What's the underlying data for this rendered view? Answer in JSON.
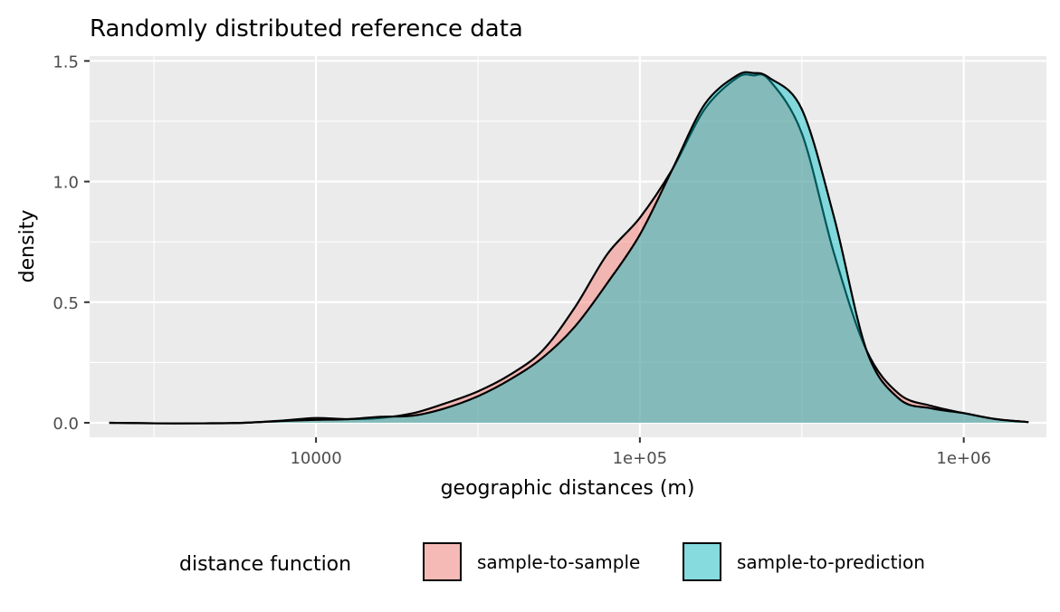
{
  "chart_data": {
    "type": "area",
    "title": "Randomly distributed reference data",
    "xlabel": "geographic distances (m)",
    "ylabel": "density",
    "x_scale": "log10",
    "xlim": [
      2000,
      1800000
    ],
    "ylim": [
      -0.06,
      1.52
    ],
    "x_ticks": [
      {
        "value": 10000,
        "label": "10000"
      },
      {
        "value": 100000,
        "label": "1e+05"
      },
      {
        "value": 1000000,
        "label": "1e+06"
      }
    ],
    "y_ticks": [
      {
        "value": 0.0,
        "label": "0.0"
      },
      {
        "value": 0.5,
        "label": "0.5"
      },
      {
        "value": 1.0,
        "label": "1.0"
      },
      {
        "value": 1.5,
        "label": "1.5"
      }
    ],
    "grid": true,
    "legend_position": "bottom",
    "legend_title": "distance function",
    "series": [
      {
        "name": "sample-to-sample",
        "color": "#F8766D",
        "fill_opacity": 0.45,
        "points": [
          [
            2300,
            0.0
          ],
          [
            3200,
            -0.002
          ],
          [
            4500,
            -0.002
          ],
          [
            6000,
            0.0
          ],
          [
            8000,
            0.01
          ],
          [
            10000,
            0.02
          ],
          [
            12600,
            0.015
          ],
          [
            15800,
            0.02
          ],
          [
            20000,
            0.04
          ],
          [
            25000,
            0.08
          ],
          [
            31600,
            0.13
          ],
          [
            39800,
            0.2
          ],
          [
            50100,
            0.3
          ],
          [
            63100,
            0.48
          ],
          [
            79400,
            0.7
          ],
          [
            100000,
            0.85
          ],
          [
            125900,
            1.05
          ],
          [
            158500,
            1.3
          ],
          [
            199500,
            1.43
          ],
          [
            223900,
            1.44
          ],
          [
            251200,
            1.42
          ],
          [
            316200,
            1.2
          ],
          [
            398100,
            0.7
          ],
          [
            501200,
            0.3
          ],
          [
            631000,
            0.12
          ],
          [
            794300,
            0.07
          ],
          [
            1000000,
            0.04
          ],
          [
            1258900,
            0.015
          ],
          [
            1584900,
            0.003
          ]
        ]
      },
      {
        "name": "sample-to-prediction",
        "color": "#00BFC4",
        "fill_opacity": 0.45,
        "points": [
          [
            2300,
            0.0
          ],
          [
            3200,
            -0.002
          ],
          [
            4500,
            -0.002
          ],
          [
            6000,
            0.0
          ],
          [
            8000,
            0.008
          ],
          [
            10000,
            0.012
          ],
          [
            12600,
            0.015
          ],
          [
            15800,
            0.025
          ],
          [
            20000,
            0.03
          ],
          [
            25000,
            0.06
          ],
          [
            31600,
            0.11
          ],
          [
            39800,
            0.18
          ],
          [
            50100,
            0.27
          ],
          [
            63100,
            0.4
          ],
          [
            79400,
            0.58
          ],
          [
            100000,
            0.78
          ],
          [
            125900,
            1.05
          ],
          [
            158500,
            1.32
          ],
          [
            199500,
            1.44
          ],
          [
            223900,
            1.45
          ],
          [
            251200,
            1.43
          ],
          [
            316200,
            1.3
          ],
          [
            398100,
            0.85
          ],
          [
            501200,
            0.3
          ],
          [
            631000,
            0.1
          ],
          [
            794300,
            0.06
          ],
          [
            1000000,
            0.04
          ],
          [
            1258900,
            0.015
          ],
          [
            1584900,
            0.003
          ]
        ]
      }
    ]
  }
}
